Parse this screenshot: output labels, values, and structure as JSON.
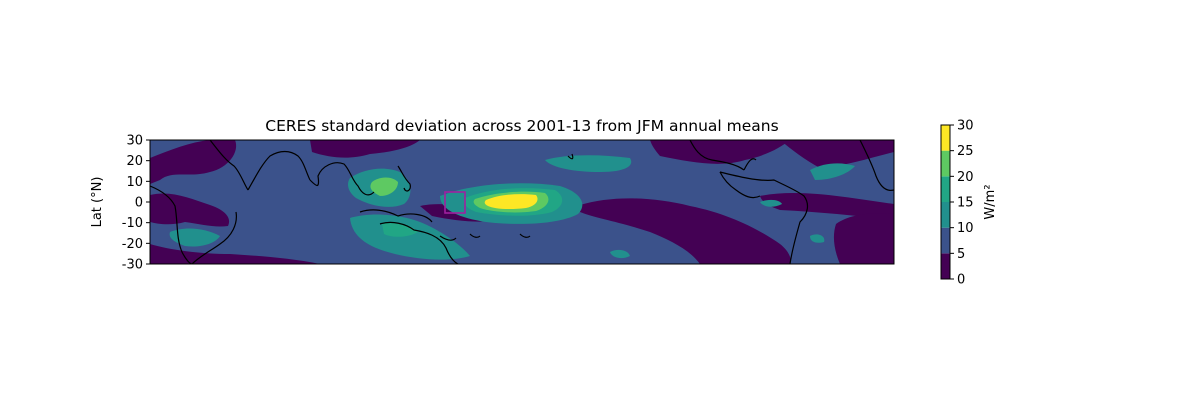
{
  "chart_data": {
    "type": "heatmap",
    "title": "CERES standard deviation across 2001-13 from JFM annual means",
    "ylabel": "Lat (°N)",
    "xlabel": "",
    "ylim": [
      -30,
      30
    ],
    "y_ticks": [
      30,
      20,
      10,
      0,
      -10,
      -20,
      -30
    ],
    "colorbar": {
      "label": "W/m²",
      "range": [
        0,
        30
      ],
      "ticks": [
        30,
        25,
        20,
        15,
        10,
        5,
        0
      ],
      "levels": [
        {
          "min": 0,
          "max": 5,
          "color": "#440154"
        },
        {
          "min": 5,
          "max": 10,
          "color": "#3b528b"
        },
        {
          "min": 10,
          "max": 15,
          "color": "#21908d"
        },
        {
          "min": 15,
          "max": 20,
          "color": "#21a685"
        },
        {
          "min": 20,
          "max": 25,
          "color": "#5ec962"
        },
        {
          "min": 25,
          "max": 30,
          "color": "#fde725"
        }
      ]
    },
    "background_level_color": "#3b528b",
    "highlight_box_color": "#a020a0",
    "coastline_color": "#000000"
  }
}
